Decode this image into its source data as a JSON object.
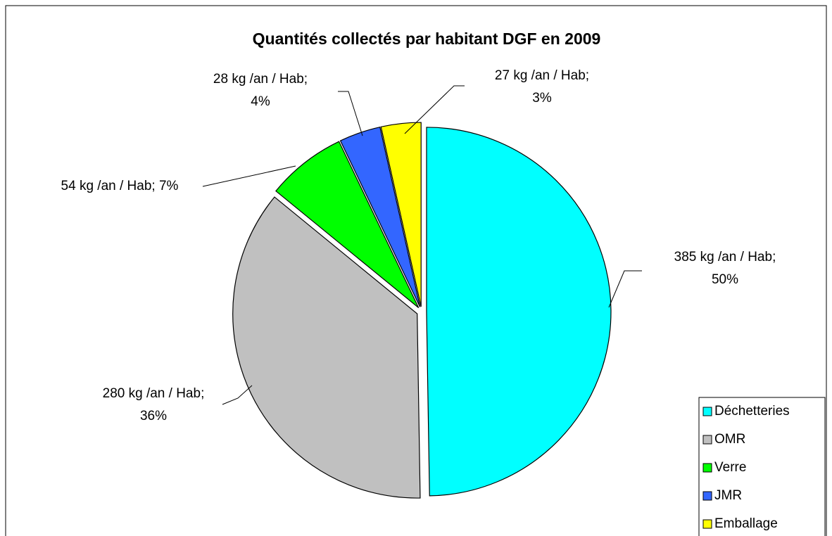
{
  "chart_data": {
    "type": "pie",
    "title": "Quantités collectés par habitant DGF en 2009",
    "categories": [
      "Déchetteries",
      "OMR",
      "Verre",
      "JMR",
      "Emballage"
    ],
    "values": [
      385,
      280,
      54,
      28,
      27
    ],
    "value_labels": [
      [
        "385 kg /an / Hab;",
        "50%"
      ],
      [
        "280 kg /an / Hab;",
        "36%"
      ],
      [
        "54 kg /an / Hab; 7%"
      ],
      [
        "28 kg /an / Hab;",
        "4%"
      ],
      [
        "27 kg /an / Hab;",
        "3%"
      ]
    ],
    "colors": [
      "#00ffff",
      "#c0c0c0",
      "#00ff00",
      "#3366ff",
      "#ffff00"
    ],
    "legend": "bottom-right"
  }
}
